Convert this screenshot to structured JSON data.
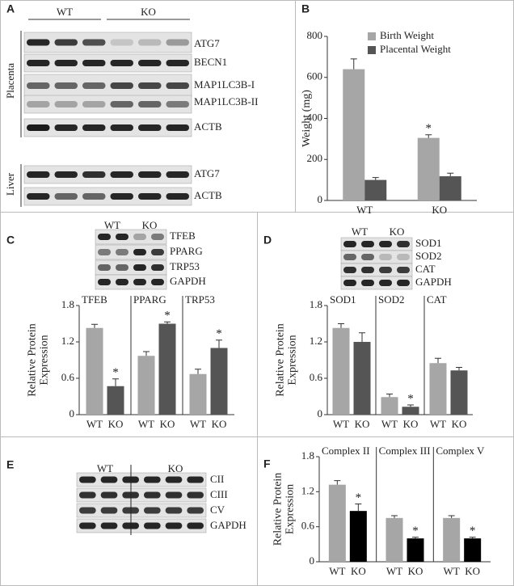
{
  "blots": {
    "A": {
      "letter": "A",
      "groups": [
        "WT",
        "KO"
      ],
      "tissues": [
        "Placenta",
        "Liver"
      ],
      "placenta_labels": [
        "ATG7",
        "BECN1",
        "MAP1LC3B-I",
        "MAP1LC3B-II",
        "ACTB"
      ],
      "liver_labels": [
        "ATG7",
        "ACTB"
      ]
    },
    "C": {
      "groups": [
        "WT",
        "KO"
      ],
      "labels": [
        "TFEB",
        "PPARG",
        "TRP53",
        "GAPDH"
      ]
    },
    "D": {
      "groups": [
        "WT",
        "KO"
      ],
      "labels": [
        "SOD1",
        "SOD2",
        "CAT",
        "GAPDH"
      ]
    },
    "E": {
      "letter": "E",
      "groups": [
        "WT",
        "KO"
      ],
      "labels": [
        "CII",
        "CIII",
        "CV",
        "GAPDH"
      ]
    }
  },
  "chart_data": [
    {
      "type": "bar",
      "panel_label": "B",
      "ylabel": [
        "Weight (mg)"
      ],
      "categories": [
        "WT",
        "KO"
      ],
      "ylim": [
        0,
        800
      ],
      "yticks": [
        0,
        200,
        400,
        600,
        800
      ],
      "significance_mark": "*",
      "series": [
        {
          "name": "Birth Weight",
          "color": "#a6a6a6",
          "values": [
            640,
            305
          ],
          "errors": [
            50,
            15
          ],
          "significant": [
            false,
            true
          ]
        },
        {
          "name": "Placental Weight",
          "color": "#555555",
          "values": [
            100,
            118
          ],
          "errors": [
            12,
            15
          ],
          "significant": [
            false,
            false
          ]
        }
      ]
    },
    {
      "type": "bar",
      "panel_label": "C",
      "ylabel": [
        "Relative Protein",
        "Expression"
      ],
      "categories": [
        "WT",
        "KO"
      ],
      "colors": [
        "#a6a6a6",
        "#555555"
      ],
      "ylim": [
        0,
        1.8
      ],
      "yticks": [
        0,
        0.6,
        1.2,
        1.8
      ],
      "significance_mark": "*",
      "groups": [
        {
          "name": "TFEB",
          "values": [
            1.43,
            0.47
          ],
          "errors": [
            0.06,
            0.12
          ],
          "significant": [
            false,
            true
          ]
        },
        {
          "name": "PPARG",
          "values": [
            0.97,
            1.5
          ],
          "errors": [
            0.07,
            0.03
          ],
          "significant": [
            false,
            true
          ]
        },
        {
          "name": "TRP53",
          "values": [
            0.67,
            1.1
          ],
          "errors": [
            0.08,
            0.13
          ],
          "significant": [
            false,
            true
          ]
        }
      ]
    },
    {
      "type": "bar",
      "panel_label": "D",
      "ylabel": [
        "Relative Protein",
        "Expression"
      ],
      "categories": [
        "WT",
        "KO"
      ],
      "colors": [
        "#a6a6a6",
        "#555555"
      ],
      "ylim": [
        0,
        1.8
      ],
      "yticks": [
        0,
        0.6,
        1.2,
        1.8
      ],
      "significance_mark": "*",
      "groups": [
        {
          "name": "SOD1",
          "values": [
            1.43,
            1.2
          ],
          "errors": [
            0.07,
            0.15
          ],
          "significant": [
            false,
            false
          ]
        },
        {
          "name": "SOD2",
          "values": [
            0.29,
            0.13
          ],
          "errors": [
            0.05,
            0.03
          ],
          "significant": [
            false,
            true
          ]
        },
        {
          "name": "CAT",
          "values": [
            0.85,
            0.73
          ],
          "errors": [
            0.08,
            0.05
          ],
          "significant": [
            false,
            false
          ]
        }
      ]
    },
    {
      "type": "bar",
      "panel_label": "F",
      "ylabel": [
        "Relative Protein",
        "Expression"
      ],
      "categories": [
        "WT",
        "KO"
      ],
      "colors": [
        "#a6a6a6",
        "#000000"
      ],
      "ylim": [
        0,
        1.8
      ],
      "yticks": [
        0,
        0.6,
        1.2,
        1.8
      ],
      "significance_mark": "*",
      "groups": [
        {
          "name": "Complex II",
          "values": [
            1.32,
            0.87
          ],
          "errors": [
            0.07,
            0.12
          ],
          "significant": [
            false,
            true
          ]
        },
        {
          "name": "Complex III",
          "values": [
            0.75,
            0.4
          ],
          "errors": [
            0.04,
            0.02
          ],
          "significant": [
            false,
            true
          ]
        },
        {
          "name": "Complex V",
          "values": [
            0.75,
            0.4
          ],
          "errors": [
            0.04,
            0.02
          ],
          "significant": [
            false,
            true
          ]
        }
      ]
    }
  ]
}
